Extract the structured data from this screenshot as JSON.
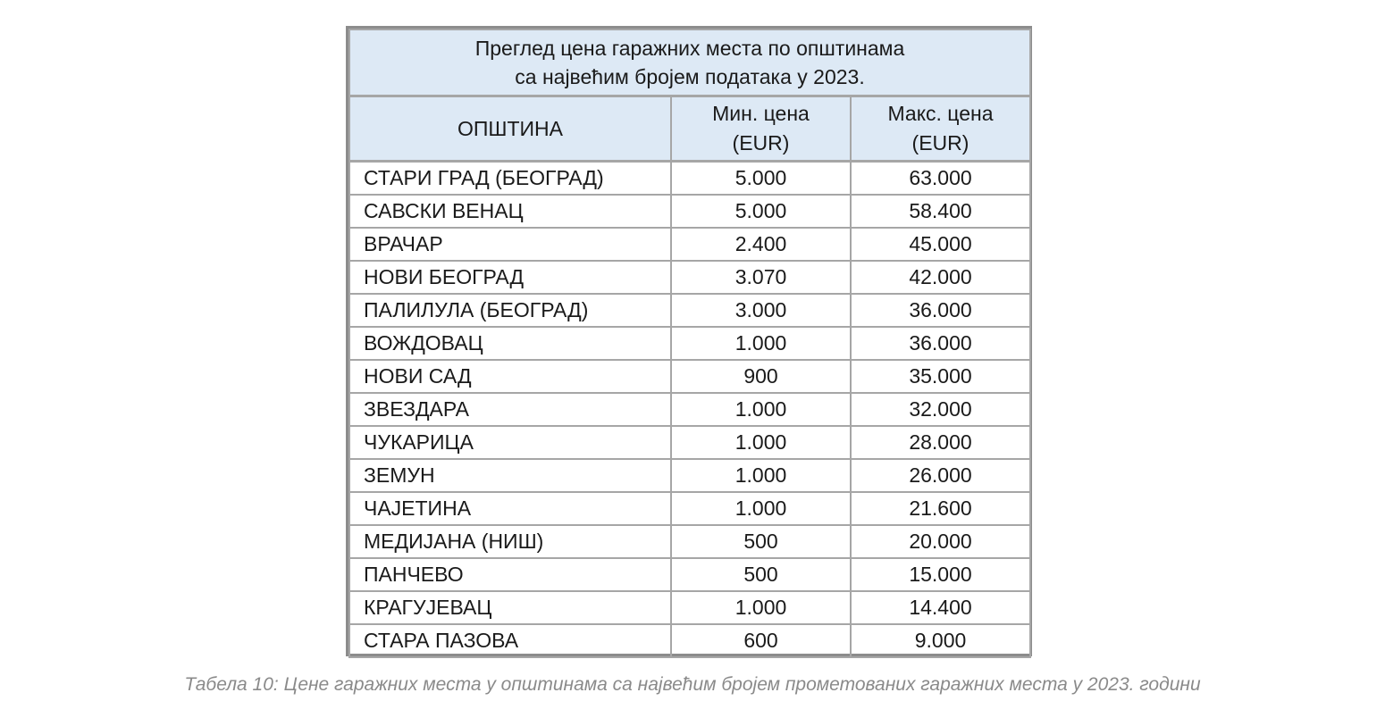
{
  "table": {
    "title_line1": "Преглед цена гаражних места по општинама",
    "title_line2": "са највећим бројем података у 2023.",
    "headers": {
      "name": "ОПШТИНА",
      "min_line1": "Мин. цена",
      "min_line2": "(EUR)",
      "max_line1": "Макс. цена",
      "max_line2": "(EUR)"
    },
    "rows": [
      {
        "name": "СТАРИ ГРАД (БЕОГРАД)",
        "min": "5.000",
        "max": "63.000"
      },
      {
        "name": "САВСКИ ВЕНАЦ",
        "min": "5.000",
        "max": "58.400"
      },
      {
        "name": "ВРАЧАР",
        "min": "2.400",
        "max": "45.000"
      },
      {
        "name": "НОВИ БЕОГРАД",
        "min": "3.070",
        "max": "42.000"
      },
      {
        "name": "ПАЛИЛУЛА (БЕОГРАД)",
        "min": "3.000",
        "max": "36.000"
      },
      {
        "name": "ВОЖДОВАЦ",
        "min": "1.000",
        "max": "36.000"
      },
      {
        "name": "НОВИ САД",
        "min": "900",
        "max": "35.000"
      },
      {
        "name": "ЗВЕЗДАРА",
        "min": "1.000",
        "max": "32.000"
      },
      {
        "name": "ЧУКАРИЦА",
        "min": "1.000",
        "max": "28.000"
      },
      {
        "name": "ЗЕМУН",
        "min": "1.000",
        "max": "26.000"
      },
      {
        "name": "ЧАЈЕТИНА",
        "min": "1.000",
        "max": "21.600"
      },
      {
        "name": "МЕДИЈАНА (НИШ)",
        "min": "500",
        "max": "20.000"
      },
      {
        "name": "ПАНЧЕВО",
        "min": "500",
        "max": "15.000"
      },
      {
        "name": "КРАГУЈЕВАЦ",
        "min": "1.000",
        "max": "14.400"
      },
      {
        "name": "СТАРА ПАЗОВА",
        "min": "600",
        "max": "9.000"
      }
    ]
  },
  "caption": "Табела 10: Цене гаражних места у општинама са највећим бројем прометованих гаражних места у 2023. години"
}
